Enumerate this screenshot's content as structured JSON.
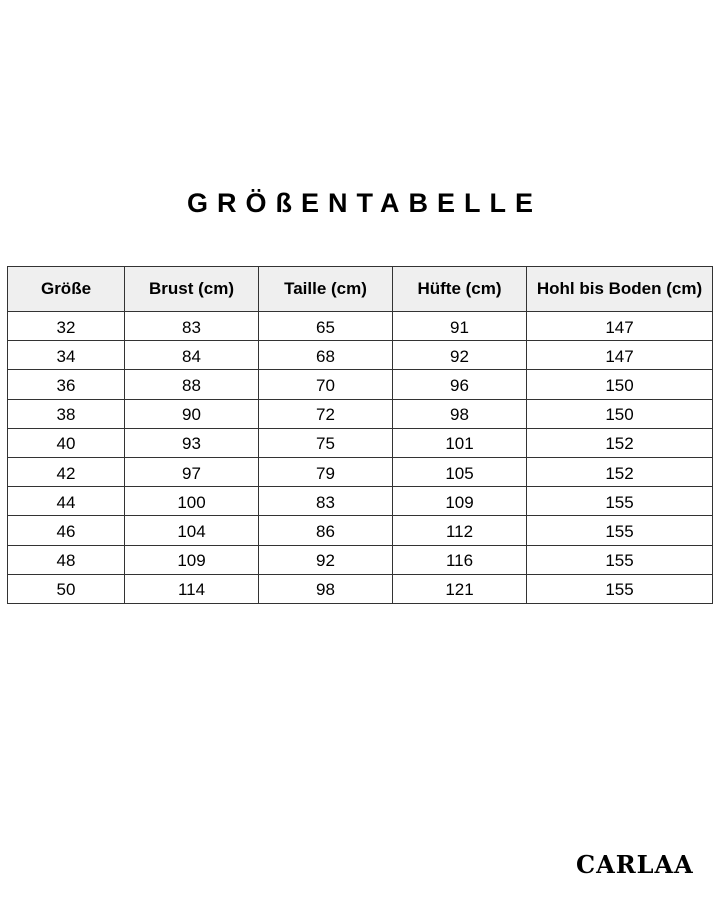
{
  "title": "GRÖßENTABELLE",
  "table": {
    "headers": [
      "Größe",
      "Brust (cm)",
      "Taille (cm)",
      "Hüfte (cm)",
      "Hohl bis Boden (cm)"
    ],
    "rows": [
      [
        "32",
        "83",
        "65",
        "91",
        "147"
      ],
      [
        "34",
        "84",
        "68",
        "92",
        "147"
      ],
      [
        "36",
        "88",
        "70",
        "96",
        "150"
      ],
      [
        "38",
        "90",
        "72",
        "98",
        "150"
      ],
      [
        "40",
        "93",
        "75",
        "101",
        "152"
      ],
      [
        "42",
        "97",
        "79",
        "105",
        "152"
      ],
      [
        "44",
        "100",
        "83",
        "109",
        "155"
      ],
      [
        "46",
        "104",
        "86",
        "112",
        "155"
      ],
      [
        "48",
        "109",
        "92",
        "116",
        "155"
      ],
      [
        "50",
        "114",
        "98",
        "121",
        "155"
      ]
    ]
  },
  "logo": "CARLAA",
  "colors": {
    "header_bg": "#efefef",
    "border": "#333333"
  }
}
